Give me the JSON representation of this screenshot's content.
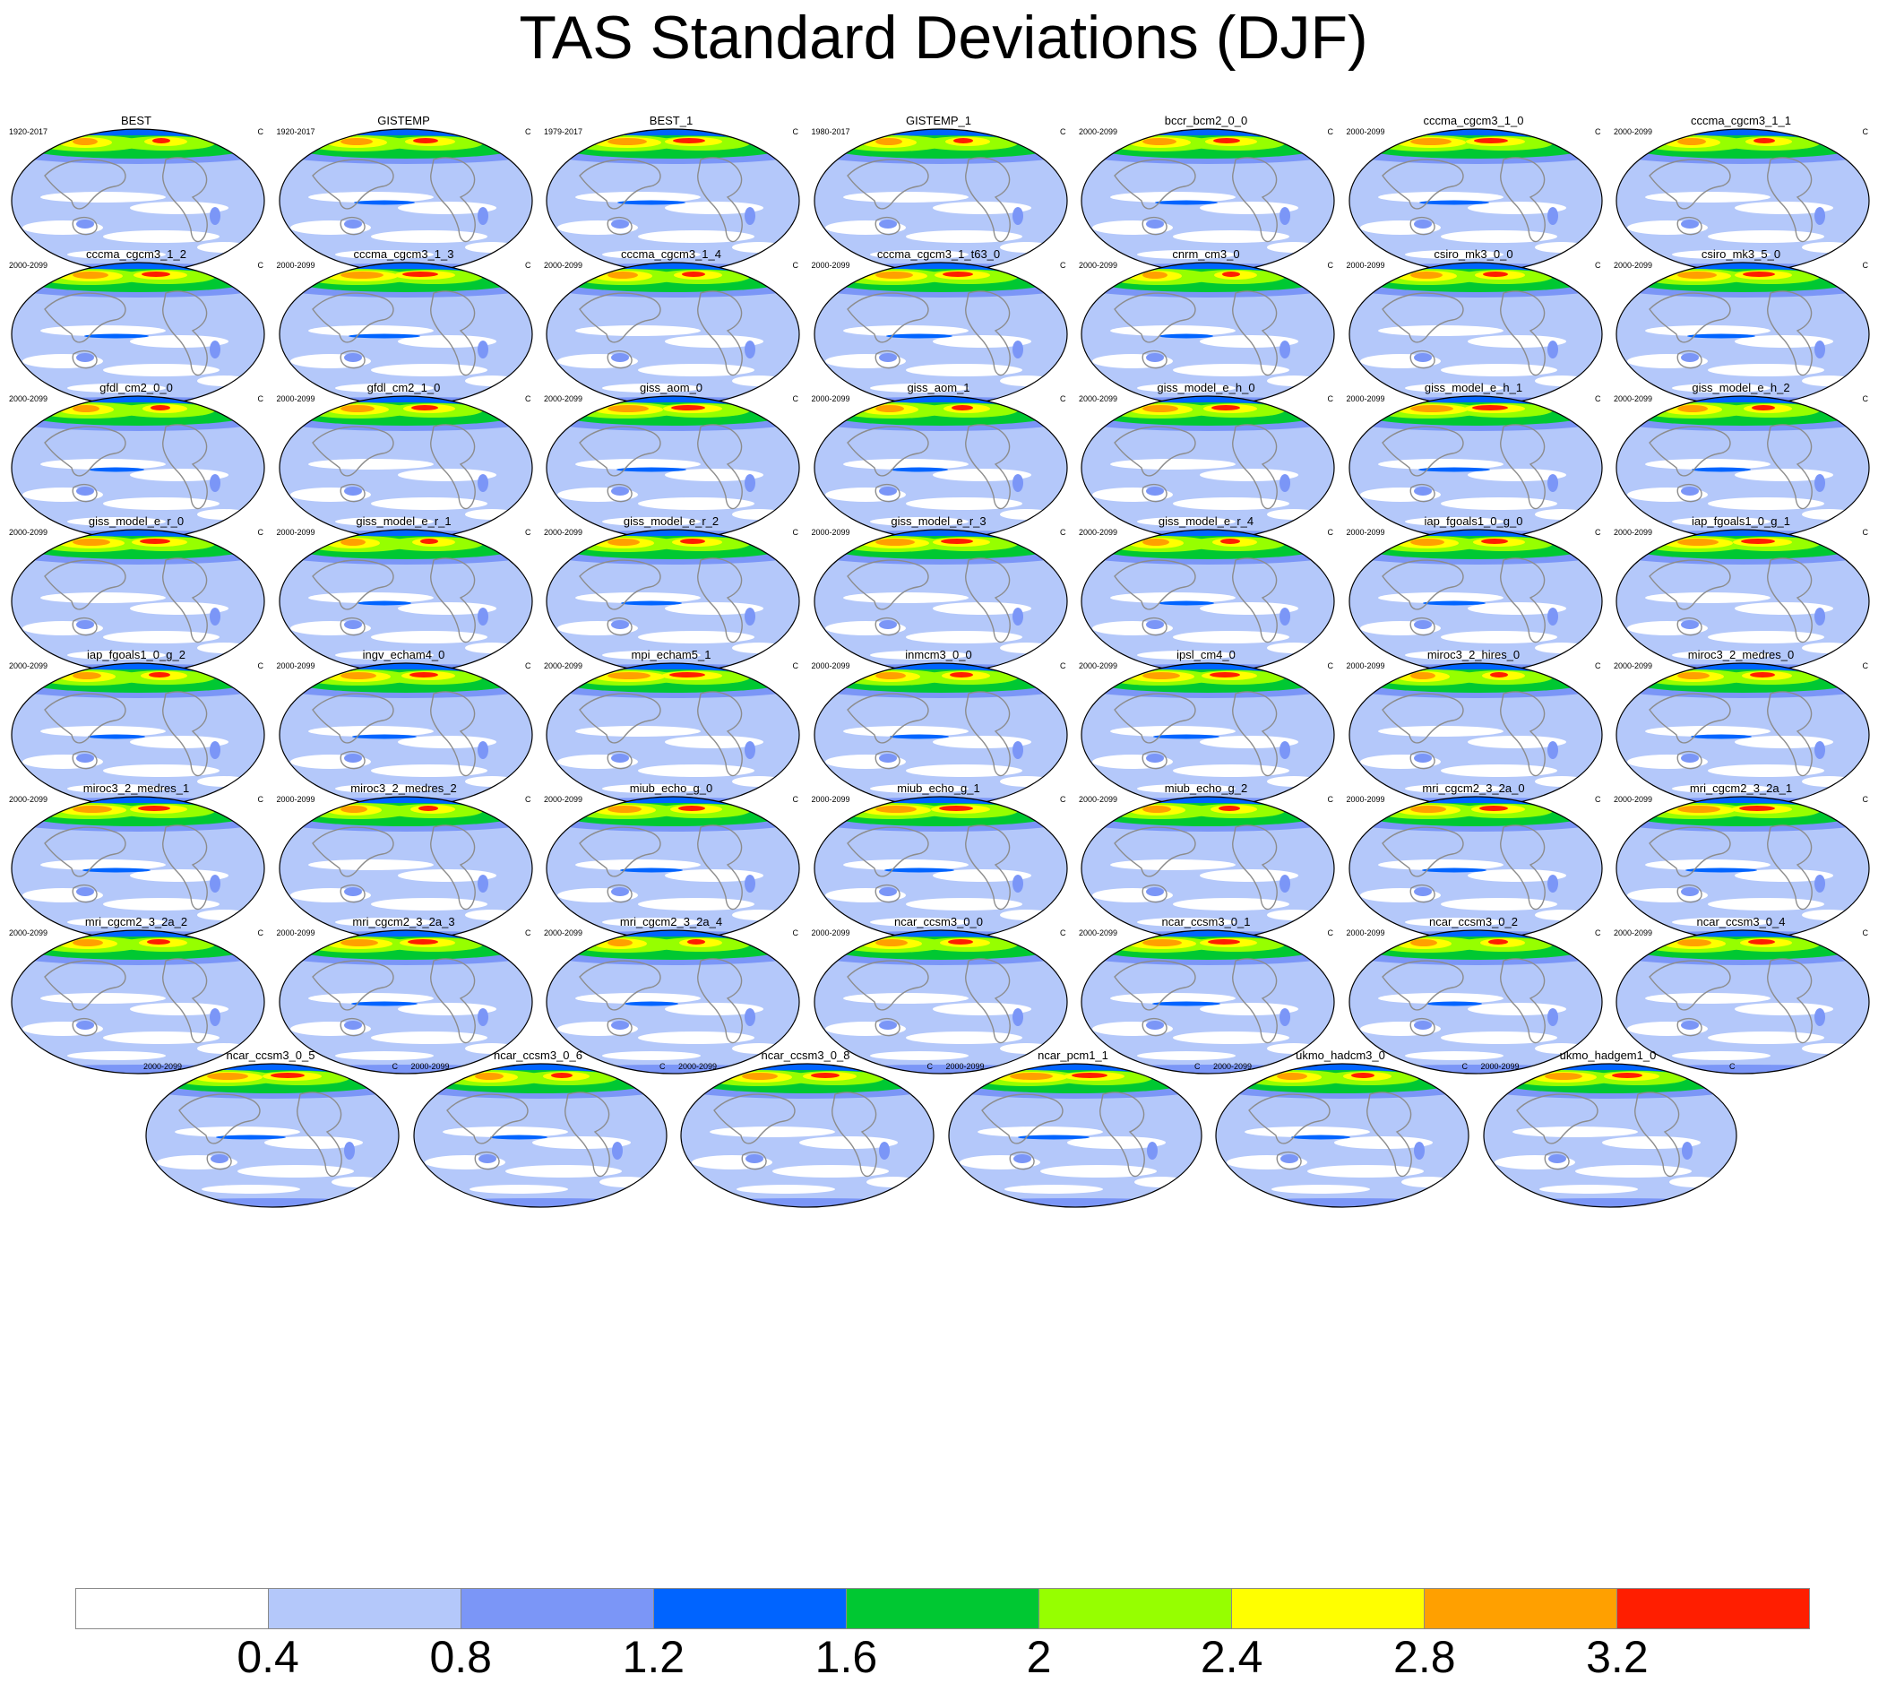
{
  "title": "TAS Standard Deviations (DJF)",
  "unit": "C",
  "map_colors": {
    "land_outline": "#8c8c8c",
    "map_border": "#000000"
  },
  "panels": [
    {
      "name": "BEST",
      "period": "1920-2017"
    },
    {
      "name": "GISTEMP",
      "period": "1920-2017"
    },
    {
      "name": "BEST_1",
      "period": "1979-2017"
    },
    {
      "name": "GISTEMP_1",
      "period": "1980-2017"
    },
    {
      "name": "bccr_bcm2_0_0",
      "period": "2000-2099"
    },
    {
      "name": "cccma_cgcm3_1_0",
      "period": "2000-2099"
    },
    {
      "name": "cccma_cgcm3_1_1",
      "period": "2000-2099"
    },
    {
      "name": "cccma_cgcm3_1_2",
      "period": "2000-2099"
    },
    {
      "name": "cccma_cgcm3_1_3",
      "period": "2000-2099"
    },
    {
      "name": "cccma_cgcm3_1_4",
      "period": "2000-2099"
    },
    {
      "name": "cccma_cgcm3_1_t63_0",
      "period": "2000-2099"
    },
    {
      "name": "cnrm_cm3_0",
      "period": "2000-2099"
    },
    {
      "name": "csiro_mk3_0_0",
      "period": "2000-2099"
    },
    {
      "name": "csiro_mk3_5_0",
      "period": "2000-2099"
    },
    {
      "name": "gfdl_cm2_0_0",
      "period": "2000-2099"
    },
    {
      "name": "gfdl_cm2_1_0",
      "period": "2000-2099"
    },
    {
      "name": "giss_aom_0",
      "period": "2000-2099"
    },
    {
      "name": "giss_aom_1",
      "period": "2000-2099"
    },
    {
      "name": "giss_model_e_h_0",
      "period": "2000-2099"
    },
    {
      "name": "giss_model_e_h_1",
      "period": "2000-2099"
    },
    {
      "name": "giss_model_e_h_2",
      "period": "2000-2099"
    },
    {
      "name": "giss_model_e_r_0",
      "period": "2000-2099"
    },
    {
      "name": "giss_model_e_r_1",
      "period": "2000-2099"
    },
    {
      "name": "giss_model_e_r_2",
      "period": "2000-2099"
    },
    {
      "name": "giss_model_e_r_3",
      "period": "2000-2099"
    },
    {
      "name": "giss_model_e_r_4",
      "period": "2000-2099"
    },
    {
      "name": "iap_fgoals1_0_g_0",
      "period": "2000-2099"
    },
    {
      "name": "iap_fgoals1_0_g_1",
      "period": "2000-2099"
    },
    {
      "name": "iap_fgoals1_0_g_2",
      "period": "2000-2099"
    },
    {
      "name": "ingv_echam4_0",
      "period": "2000-2099"
    },
    {
      "name": "mpi_echam5_1",
      "period": "2000-2099"
    },
    {
      "name": "inmcm3_0_0",
      "period": "2000-2099"
    },
    {
      "name": "ipsl_cm4_0",
      "period": "2000-2099"
    },
    {
      "name": "miroc3_2_hires_0",
      "period": "2000-2099"
    },
    {
      "name": "miroc3_2_medres_0",
      "period": "2000-2099"
    },
    {
      "name": "miroc3_2_medres_1",
      "period": "2000-2099"
    },
    {
      "name": "miroc3_2_medres_2",
      "period": "2000-2099"
    },
    {
      "name": "miub_echo_g_0",
      "period": "2000-2099"
    },
    {
      "name": "miub_echo_g_1",
      "period": "2000-2099"
    },
    {
      "name": "miub_echo_g_2",
      "period": "2000-2099"
    },
    {
      "name": "mri_cgcm2_3_2a_0",
      "period": "2000-2099"
    },
    {
      "name": "mri_cgcm2_3_2a_1",
      "period": "2000-2099"
    },
    {
      "name": "mri_cgcm2_3_2a_2",
      "period": "2000-2099"
    },
    {
      "name": "mri_cgcm2_3_2a_3",
      "period": "2000-2099"
    },
    {
      "name": "mri_cgcm2_3_2a_4",
      "period": "2000-2099"
    },
    {
      "name": "ncar_ccsm3_0_0",
      "period": "2000-2099"
    },
    {
      "name": "ncar_ccsm3_0_1",
      "period": "2000-2099"
    },
    {
      "name": "ncar_ccsm3_0_2",
      "period": "2000-2099"
    },
    {
      "name": "ncar_ccsm3_0_4",
      "period": "2000-2099"
    },
    {
      "name": "ncar_ccsm3_0_5",
      "period": "2000-2099"
    },
    {
      "name": "ncar_ccsm3_0_6",
      "period": "2000-2099"
    },
    {
      "name": "ncar_ccsm3_0_8",
      "period": "2000-2099"
    },
    {
      "name": "ncar_pcm1_1",
      "period": "2000-2099"
    },
    {
      "name": "ukmo_hadcm3_0",
      "period": "2000-2099"
    },
    {
      "name": "ukmo_hadgem1_0",
      "period": "2000-2099"
    }
  ],
  "colorbar": {
    "labels": [
      "0.4",
      "0.8",
      "1.2",
      "1.6",
      "2",
      "2.4",
      "2.8",
      "3.2"
    ],
    "colors": [
      "#ffffff",
      "#b4c8fa",
      "#7b96f7",
      "#0064ff",
      "#00c832",
      "#96ff00",
      "#ffff00",
      "#ffa000",
      "#ff1e00"
    ]
  }
}
